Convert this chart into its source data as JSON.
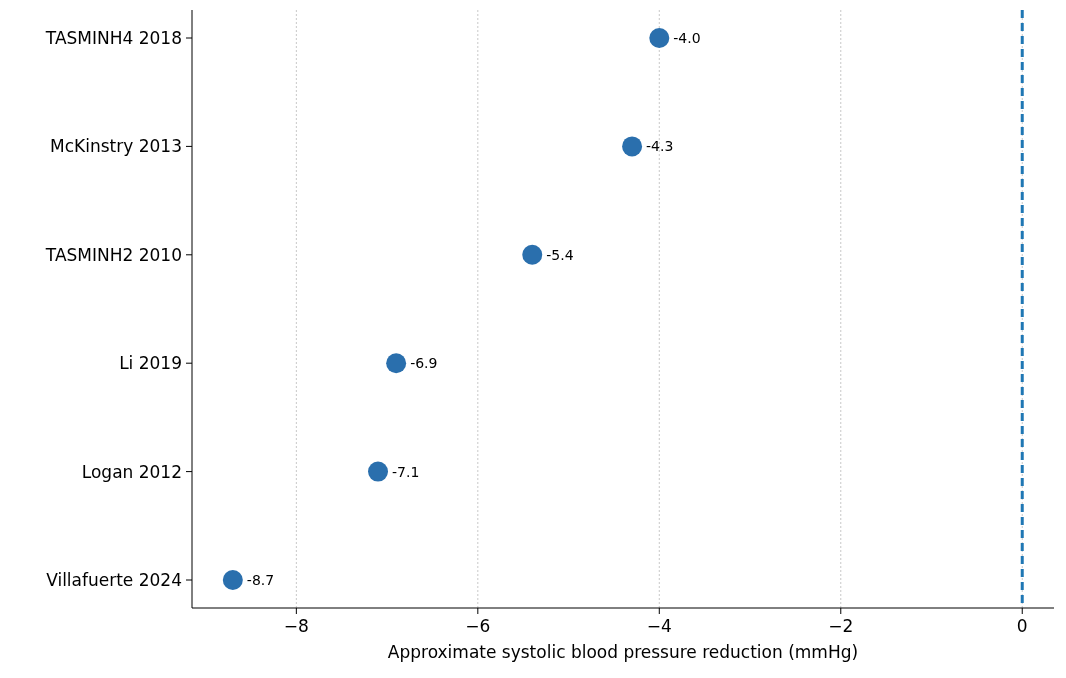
{
  "chart_data": {
    "type": "scatter",
    "orientation": "horizontal",
    "xlabel": "Approximate systolic blood pressure reduction (mmHg)",
    "categories": [
      "TASMINH4 2018",
      "McKinstry 2013",
      "TASMINH2 2010",
      "Li 2019",
      "Logan 2012",
      "Villafuerte 2024"
    ],
    "values": [
      -4.0,
      -4.3,
      -5.4,
      -6.9,
      -7.1,
      -8.7
    ],
    "value_labels": [
      "-4.0",
      "-4.3",
      "-5.4",
      "-6.9",
      "-7.1",
      "-8.7"
    ],
    "color": "#2a6fad",
    "marker": "circle",
    "xlim": [
      -9.15,
      0.35
    ],
    "xticks": [
      {
        "value": -8,
        "label": "−8"
      },
      {
        "value": -6,
        "label": "−6"
      },
      {
        "value": -4,
        "label": "−4"
      },
      {
        "value": -2,
        "label": "−2"
      },
      0
    ],
    "grid": "x",
    "ref_lines": [
      {
        "axis": "x",
        "value": 0,
        "color": "#1f77b4",
        "line_style": "dashed"
      }
    ]
  }
}
